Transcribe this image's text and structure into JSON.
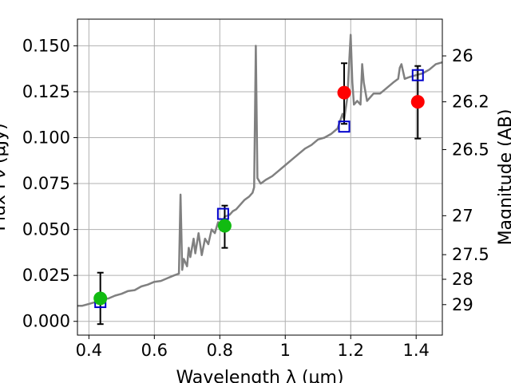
{
  "chart_data": {
    "type": "line",
    "xlabel": "Wavelength  λ (μm)",
    "ylabel": "Flux Fν (μJy)",
    "ylabel_right": "Magnitude (AB)",
    "xlim": [
      0.365,
      1.48
    ],
    "ylim": [
      -0.0075,
      0.1645
    ],
    "grid": true,
    "x_ticks": [
      {
        "v": 0.4,
        "label": "0.4"
      },
      {
        "v": 0.6,
        "label": "0.6"
      },
      {
        "v": 0.8,
        "label": "0.8"
      },
      {
        "v": 1.0,
        "label": "1"
      },
      {
        "v": 1.2,
        "label": "1.2"
      },
      {
        "v": 1.4,
        "label": "1.4"
      }
    ],
    "y_ticks": [
      {
        "v": 0.0,
        "label": "0.000"
      },
      {
        "v": 0.025,
        "label": "0.025"
      },
      {
        "v": 0.05,
        "label": "0.050"
      },
      {
        "v": 0.075,
        "label": "0.075"
      },
      {
        "v": 0.1,
        "label": "0.100"
      },
      {
        "v": 0.125,
        "label": "0.125"
      },
      {
        "v": 0.15,
        "label": "0.150"
      }
    ],
    "right_ticks": [
      {
        "flux": 0.1445,
        "label": "26"
      },
      {
        "flux": 0.1195,
        "label": "26.2"
      },
      {
        "flux": 0.0935,
        "label": "26.5"
      },
      {
        "flux": 0.0575,
        "label": "27"
      },
      {
        "flux": 0.0363,
        "label": "27.5"
      },
      {
        "flux": 0.0229,
        "label": "28"
      },
      {
        "flux": 0.0091,
        "label": "29"
      }
    ],
    "series": [
      {
        "kind": "spectrum",
        "color": "#808080",
        "points": [
          [
            0.365,
            0.0085
          ],
          [
            0.38,
            0.0085
          ],
          [
            0.4,
            0.0095
          ],
          [
            0.42,
            0.0105
          ],
          [
            0.44,
            0.012
          ],
          [
            0.46,
            0.0125
          ],
          [
            0.48,
            0.014
          ],
          [
            0.5,
            0.015
          ],
          [
            0.52,
            0.0165
          ],
          [
            0.54,
            0.017
          ],
          [
            0.56,
            0.019
          ],
          [
            0.58,
            0.02
          ],
          [
            0.6,
            0.0215
          ],
          [
            0.62,
            0.022
          ],
          [
            0.64,
            0.0235
          ],
          [
            0.66,
            0.025
          ],
          [
            0.675,
            0.026
          ],
          [
            0.68,
            0.069
          ],
          [
            0.685,
            0.028
          ],
          [
            0.69,
            0.034
          ],
          [
            0.7,
            0.03
          ],
          [
            0.705,
            0.04
          ],
          [
            0.71,
            0.035
          ],
          [
            0.72,
            0.045
          ],
          [
            0.725,
            0.037
          ],
          [
            0.735,
            0.048
          ],
          [
            0.745,
            0.036
          ],
          [
            0.755,
            0.045
          ],
          [
            0.765,
            0.042
          ],
          [
            0.775,
            0.05
          ],
          [
            0.785,
            0.048
          ],
          [
            0.795,
            0.054
          ],
          [
            0.805,
            0.052
          ],
          [
            0.815,
            0.057
          ],
          [
            0.83,
            0.058
          ],
          [
            0.84,
            0.06
          ],
          [
            0.85,
            0.061
          ],
          [
            0.86,
            0.063
          ],
          [
            0.875,
            0.066
          ],
          [
            0.89,
            0.068
          ],
          [
            0.9,
            0.07
          ],
          [
            0.905,
            0.073
          ],
          [
            0.91,
            0.15
          ],
          [
            0.915,
            0.078
          ],
          [
            0.925,
            0.075
          ],
          [
            0.94,
            0.077
          ],
          [
            0.96,
            0.079
          ],
          [
            0.98,
            0.082
          ],
          [
            1.0,
            0.085
          ],
          [
            1.02,
            0.088
          ],
          [
            1.04,
            0.091
          ],
          [
            1.06,
            0.094
          ],
          [
            1.08,
            0.096
          ],
          [
            1.1,
            0.099
          ],
          [
            1.12,
            0.1
          ],
          [
            1.14,
            0.102
          ],
          [
            1.16,
            0.105
          ],
          [
            1.175,
            0.113
          ],
          [
            1.18,
            0.11
          ],
          [
            1.19,
            0.122
          ],
          [
            1.195,
            0.14
          ],
          [
            1.2,
            0.156
          ],
          [
            1.205,
            0.13
          ],
          [
            1.21,
            0.118
          ],
          [
            1.22,
            0.12
          ],
          [
            1.23,
            0.118
          ],
          [
            1.235,
            0.14
          ],
          [
            1.24,
            0.13
          ],
          [
            1.25,
            0.12
          ],
          [
            1.27,
            0.124
          ],
          [
            1.29,
            0.124
          ],
          [
            1.31,
            0.127
          ],
          [
            1.33,
            0.13
          ],
          [
            1.345,
            0.132
          ],
          [
            1.35,
            0.138
          ],
          [
            1.355,
            0.14
          ],
          [
            1.365,
            0.132
          ],
          [
            1.38,
            0.133
          ],
          [
            1.4,
            0.134
          ],
          [
            1.42,
            0.135
          ],
          [
            1.44,
            0.137
          ],
          [
            1.46,
            0.14
          ],
          [
            1.48,
            0.141
          ]
        ]
      },
      {
        "kind": "model-photometry",
        "marker": "open-square",
        "color": "#0000cc",
        "points": [
          [
            0.435,
            0.0105
          ],
          [
            0.81,
            0.0585
          ],
          [
            1.18,
            0.106
          ],
          [
            1.405,
            0.134
          ]
        ]
      },
      {
        "kind": "observed-green",
        "marker": "circle",
        "color": "#11bb11",
        "points": [
          {
            "x": 0.435,
            "y": 0.0125,
            "lo": -0.0015,
            "hi": 0.0265
          },
          {
            "x": 0.815,
            "y": 0.052,
            "lo": 0.04,
            "hi": 0.063
          }
        ]
      },
      {
        "kind": "observed-red",
        "marker": "circle",
        "color": "#ff0000",
        "points": [
          {
            "x": 1.18,
            "y": 0.1245,
            "lo": 0.1075,
            "hi": 0.1405
          },
          {
            "x": 1.405,
            "y": 0.1195,
            "lo": 0.0995,
            "hi": 0.139
          }
        ]
      }
    ]
  }
}
